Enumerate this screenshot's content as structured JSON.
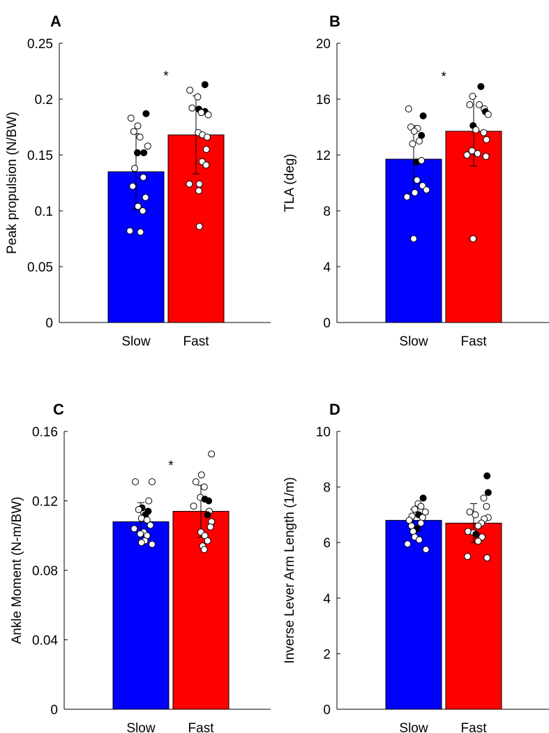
{
  "figure": {
    "colors": {
      "slow": "#0000FF",
      "fast": "#FF0000",
      "axis": "#000000",
      "open_marker": "#FFFFFF",
      "filled_marker": "#000000"
    },
    "marker_styles": [
      "open",
      "filled"
    ]
  },
  "chart_data": [
    {
      "panel": "A",
      "type": "bar",
      "ylabel": "Peak propulsion (N/BW)",
      "categories": [
        "Slow",
        "Fast"
      ],
      "means": [
        0.135,
        0.168
      ],
      "sd": [
        0.034,
        0.035
      ],
      "ylim": [
        0,
        0.25
      ],
      "yticks": [
        0,
        0.05,
        0.1,
        0.15,
        0.2,
        0.25
      ],
      "ytick_labels": [
        "0",
        "0.05",
        "0.1",
        "0.15",
        "0.2",
        "0.25"
      ],
      "significance": "*",
      "points": [
        [
          {
            "v": 0.183,
            "j": -0.18,
            "f": false
          },
          {
            "v": 0.176,
            "j": 0.06,
            "f": false
          },
          {
            "v": 0.171,
            "j": -0.08,
            "f": false
          },
          {
            "v": 0.166,
            "j": 0.14,
            "f": false
          },
          {
            "v": 0.187,
            "j": 0.36,
            "f": true
          },
          {
            "v": 0.158,
            "j": 0.42,
            "f": false
          },
          {
            "v": 0.152,
            "j": 0.05,
            "f": true
          },
          {
            "v": 0.152,
            "j": 0.28,
            "f": true
          },
          {
            "v": 0.138,
            "j": -0.05,
            "f": false
          },
          {
            "v": 0.13,
            "j": 0.26,
            "f": false
          },
          {
            "v": 0.122,
            "j": -0.12,
            "f": false
          },
          {
            "v": 0.112,
            "j": 0.34,
            "f": false
          },
          {
            "v": 0.104,
            "j": 0.07,
            "f": false
          },
          {
            "v": 0.1,
            "j": 0.24,
            "f": false
          },
          {
            "v": 0.082,
            "j": -0.22,
            "f": false
          },
          {
            "v": 0.081,
            "j": 0.16,
            "f": false
          }
        ],
        [
          {
            "v": 0.213,
            "j": 0.32,
            "f": true
          },
          {
            "v": 0.208,
            "j": -0.22,
            "f": false
          },
          {
            "v": 0.202,
            "j": 0.06,
            "f": false
          },
          {
            "v": 0.192,
            "j": -0.14,
            "f": false
          },
          {
            "v": 0.191,
            "j": 0.1,
            "f": true
          },
          {
            "v": 0.189,
            "j": 0.32,
            "f": true
          },
          {
            "v": 0.186,
            "j": 0.44,
            "f": false
          },
          {
            "v": 0.188,
            "j": 0.19,
            "f": false
          },
          {
            "v": 0.17,
            "j": 0.08,
            "f": false
          },
          {
            "v": 0.168,
            "j": 0.23,
            "f": false
          },
          {
            "v": 0.166,
            "j": 0.4,
            "f": false
          },
          {
            "v": 0.155,
            "j": 0.37,
            "f": false
          },
          {
            "v": 0.144,
            "j": 0.22,
            "f": false
          },
          {
            "v": 0.141,
            "j": 0.36,
            "f": false
          },
          {
            "v": 0.124,
            "j": -0.24,
            "f": false
          },
          {
            "v": 0.124,
            "j": 0.12,
            "f": false
          },
          {
            "v": 0.118,
            "j": 0.1,
            "f": false
          },
          {
            "v": 0.086,
            "j": 0.12,
            "f": false
          }
        ]
      ]
    },
    {
      "panel": "B",
      "type": "bar",
      "ylabel": "TLA (deg)",
      "categories": [
        "Slow",
        "Fast"
      ],
      "means": [
        11.7,
        13.7
      ],
      "sd": [
        2.4,
        2.5
      ],
      "ylim": [
        0,
        20
      ],
      "yticks": [
        0,
        4,
        8,
        12,
        16,
        20
      ],
      "ytick_labels": [
        "0",
        "4",
        "8",
        "12",
        "16",
        "20"
      ],
      "significance": "*",
      "points": [
        [
          {
            "v": 15.3,
            "j": -0.18,
            "f": false
          },
          {
            "v": 14.8,
            "j": 0.34,
            "f": true
          },
          {
            "v": 14.0,
            "j": -0.1,
            "f": false
          },
          {
            "v": 13.9,
            "j": 0.14,
            "f": false
          },
          {
            "v": 13.7,
            "j": 0.02,
            "f": false
          },
          {
            "v": 13.4,
            "j": 0.28,
            "f": true
          },
          {
            "v": 13.0,
            "j": 0.2,
            "f": false
          },
          {
            "v": 12.8,
            "j": -0.04,
            "f": false
          },
          {
            "v": 11.5,
            "j": 0.1,
            "f": true
          },
          {
            "v": 11.6,
            "j": 0.28,
            "f": false
          },
          {
            "v": 10.2,
            "j": 0.12,
            "f": false
          },
          {
            "v": 9.8,
            "j": 0.32,
            "f": false
          },
          {
            "v": 9.5,
            "j": 0.46,
            "f": false
          },
          {
            "v": 9.3,
            "j": 0.04,
            "f": false
          },
          {
            "v": 9.0,
            "j": -0.24,
            "f": false
          },
          {
            "v": 6.0,
            "j": 0.0,
            "f": false
          }
        ],
        [
          {
            "v": 16.9,
            "j": 0.26,
            "f": true
          },
          {
            "v": 16.2,
            "j": -0.04,
            "f": false
          },
          {
            "v": 15.6,
            "j": 0.2,
            "f": false
          },
          {
            "v": 15.6,
            "j": -0.14,
            "f": false
          },
          {
            "v": 15.3,
            "j": 0.38,
            "f": false
          },
          {
            "v": 15.1,
            "j": 0.42,
            "f": true
          },
          {
            "v": 14.9,
            "j": 0.52,
            "f": false
          },
          {
            "v": 14.1,
            "j": -0.02,
            "f": true
          },
          {
            "v": 13.8,
            "j": 0.08,
            "f": false
          },
          {
            "v": 13.6,
            "j": 0.36,
            "f": false
          },
          {
            "v": 13.1,
            "j": 0.46,
            "f": false
          },
          {
            "v": 12.3,
            "j": -0.06,
            "f": false
          },
          {
            "v": 12.1,
            "j": 0.14,
            "f": false
          },
          {
            "v": 12.0,
            "j": -0.24,
            "f": false
          },
          {
            "v": 11.9,
            "j": 0.44,
            "f": false
          },
          {
            "v": 6.0,
            "j": -0.02,
            "f": false
          }
        ]
      ]
    },
    {
      "panel": "C",
      "type": "bar",
      "ylabel": "Ankle Moment (N-m/BW)",
      "categories": [
        "Slow",
        "Fast"
      ],
      "means": [
        0.108,
        0.114
      ],
      "sd": [
        0.011,
        0.015
      ],
      "ylim": [
        0,
        0.16
      ],
      "yticks": [
        0,
        0.04,
        0.08,
        0.12,
        0.16
      ],
      "ytick_labels": [
        "0",
        "0.04",
        "0.08",
        "0.12",
        "0.16"
      ],
      "significance": "*",
      "points": [
        [
          {
            "v": 0.131,
            "j": -0.2,
            "f": false
          },
          {
            "v": 0.131,
            "j": 0.4,
            "f": false
          },
          {
            "v": 0.12,
            "j": 0.28,
            "f": false
          },
          {
            "v": 0.116,
            "j": 0.04,
            "f": true
          },
          {
            "v": 0.115,
            "j": -0.08,
            "f": false
          },
          {
            "v": 0.114,
            "j": 0.26,
            "f": true
          },
          {
            "v": 0.112,
            "j": 0.16,
            "f": true
          },
          {
            "v": 0.11,
            "j": 0.02,
            "f": false
          },
          {
            "v": 0.109,
            "j": 0.22,
            "f": false
          },
          {
            "v": 0.106,
            "j": 0.34,
            "f": false
          },
          {
            "v": 0.104,
            "j": -0.24,
            "f": false
          },
          {
            "v": 0.102,
            "j": 0.1,
            "f": false
          },
          {
            "v": 0.101,
            "j": -0.02,
            "f": false
          },
          {
            "v": 0.1,
            "j": 0.22,
            "f": false
          },
          {
            "v": 0.097,
            "j": 0.14,
            "f": false
          },
          {
            "v": 0.096,
            "j": 0.02,
            "f": false
          },
          {
            "v": 0.095,
            "j": 0.4,
            "f": false
          }
        ],
        [
          {
            "v": 0.147,
            "j": 0.38,
            "f": false
          },
          {
            "v": 0.135,
            "j": 0.02,
            "f": false
          },
          {
            "v": 0.131,
            "j": -0.18,
            "f": false
          },
          {
            "v": 0.128,
            "j": 0.12,
            "f": false
          },
          {
            "v": 0.122,
            "j": -0.02,
            "f": false
          },
          {
            "v": 0.121,
            "j": 0.14,
            "f": true
          },
          {
            "v": 0.12,
            "j": 0.28,
            "f": true
          },
          {
            "v": 0.117,
            "j": -0.26,
            "f": false
          },
          {
            "v": 0.114,
            "j": 0.3,
            "f": false
          },
          {
            "v": 0.112,
            "j": 0.24,
            "f": true
          },
          {
            "v": 0.108,
            "j": 0.38,
            "f": false
          },
          {
            "v": 0.105,
            "j": 0.34,
            "f": false
          },
          {
            "v": 0.102,
            "j": 0.0,
            "f": false
          },
          {
            "v": 0.1,
            "j": 0.14,
            "f": false
          },
          {
            "v": 0.097,
            "j": 0.24,
            "f": false
          },
          {
            "v": 0.094,
            "j": 0.06,
            "f": false
          },
          {
            "v": 0.092,
            "j": 0.12,
            "f": false
          }
        ]
      ]
    },
    {
      "panel": "D",
      "type": "bar",
      "ylabel": "Inverse Lever Arm Length (1/m)",
      "categories": [
        "Slow",
        "Fast"
      ],
      "means": [
        6.8,
        6.7
      ],
      "sd": [
        0.4,
        0.7
      ],
      "ylim": [
        0,
        10
      ],
      "yticks": [
        0,
        2,
        4,
        6,
        8,
        10
      ],
      "ytick_labels": [
        "0",
        "2",
        "4",
        "6",
        "8",
        "10"
      ],
      "significance": "",
      "points": [
        [
          {
            "v": 7.6,
            "j": 0.34,
            "f": true
          },
          {
            "v": 7.4,
            "j": 0.16,
            "f": false
          },
          {
            "v": 7.3,
            "j": 0.26,
            "f": false
          },
          {
            "v": 7.2,
            "j": 0.04,
            "f": false
          },
          {
            "v": 7.1,
            "j": 0.42,
            "f": false
          },
          {
            "v": 7.0,
            "j": 0.18,
            "f": true
          },
          {
            "v": 6.95,
            "j": -0.06,
            "f": false
          },
          {
            "v": 6.9,
            "j": 0.32,
            "f": false
          },
          {
            "v": 6.8,
            "j": -0.16,
            "f": false
          },
          {
            "v": 6.7,
            "j": 0.26,
            "f": false
          },
          {
            "v": 6.6,
            "j": -0.08,
            "f": false
          },
          {
            "v": 6.5,
            "j": 0.12,
            "f": true
          },
          {
            "v": 6.4,
            "j": -0.02,
            "f": false
          },
          {
            "v": 6.2,
            "j": 0.04,
            "f": false
          },
          {
            "v": 6.1,
            "j": 0.2,
            "f": false
          },
          {
            "v": 5.95,
            "j": -0.22,
            "f": false
          },
          {
            "v": 5.75,
            "j": 0.44,
            "f": false
          }
        ],
        [
          {
            "v": 8.4,
            "j": 0.48,
            "f": true
          },
          {
            "v": 7.8,
            "j": 0.52,
            "f": true
          },
          {
            "v": 7.6,
            "j": 0.36,
            "f": false
          },
          {
            "v": 7.3,
            "j": 0.46,
            "f": false
          },
          {
            "v": 7.1,
            "j": -0.14,
            "f": false
          },
          {
            "v": 7.0,
            "j": 0.06,
            "f": false
          },
          {
            "v": 6.9,
            "j": 0.52,
            "f": false
          },
          {
            "v": 6.85,
            "j": 0.38,
            "f": false
          },
          {
            "v": 6.7,
            "j": 0.28,
            "f": false
          },
          {
            "v": 6.6,
            "j": 0.16,
            "f": false
          },
          {
            "v": 6.4,
            "j": -0.2,
            "f": false
          },
          {
            "v": 6.35,
            "j": 0.0,
            "f": false
          },
          {
            "v": 6.3,
            "j": 0.08,
            "f": true
          },
          {
            "v": 6.2,
            "j": 0.3,
            "f": false
          },
          {
            "v": 6.05,
            "j": 0.16,
            "f": false
          },
          {
            "v": 5.5,
            "j": -0.22,
            "f": false
          },
          {
            "v": 5.45,
            "j": 0.48,
            "f": false
          }
        ]
      ]
    }
  ]
}
